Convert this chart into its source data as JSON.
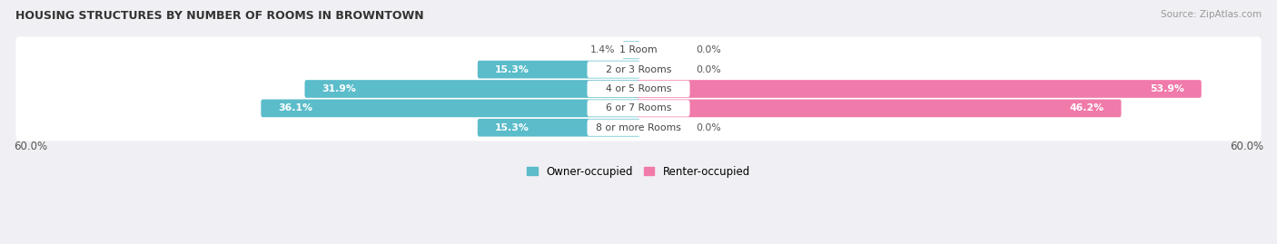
{
  "title": "HOUSING STRUCTURES BY NUMBER OF ROOMS IN BROWNTOWN",
  "source": "Source: ZipAtlas.com",
  "categories": [
    "1 Room",
    "2 or 3 Rooms",
    "4 or 5 Rooms",
    "6 or 7 Rooms",
    "8 or more Rooms"
  ],
  "owner_values": [
    1.4,
    15.3,
    31.9,
    36.1,
    15.3
  ],
  "renter_values": [
    0.0,
    0.0,
    53.9,
    46.2,
    0.0
  ],
  "owner_color": "#5bbcca",
  "renter_color": "#f07aaa",
  "axis_max": 60.0,
  "bar_height": 0.62,
  "row_bg_color": "#e8e8ec",
  "background_color": "#f0f0f4",
  "legend_owner": "Owner-occupied",
  "legend_renter": "Renter-occupied",
  "figsize": [
    14.06,
    2.69
  ],
  "dpi": 100
}
